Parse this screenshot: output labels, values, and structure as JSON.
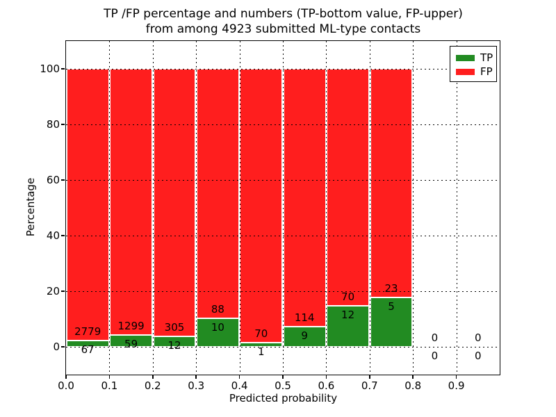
{
  "title": {
    "line1": "TP /FP percentage and numbers (TP-bottom value, FP-upper)",
    "line2": "from among 4923 submitted ML-type contacts"
  },
  "chart_data": {
    "type": "bar",
    "stacked": true,
    "title": "TP /FP percentage and numbers (TP-bottom value, FP-upper)\nfrom among 4923 submitted ML-type contacts",
    "xlabel": "Predicted probability",
    "ylabel": "Percentage",
    "total_contacts": 4923,
    "bin_starts": [
      0.0,
      0.1,
      0.2,
      0.3,
      0.4,
      0.5,
      0.6,
      0.7,
      0.8,
      0.9
    ],
    "bin_width": 0.1,
    "xticks": [
      0.0,
      0.1,
      0.2,
      0.3,
      0.4,
      0.5,
      0.6,
      0.7,
      0.8,
      0.9
    ],
    "xticklabels": [
      "0.0",
      "0.1",
      "0.2",
      "0.3",
      "0.4",
      "0.5",
      "0.6",
      "0.7",
      "0.8",
      "0.9"
    ],
    "yticks": [
      0,
      20,
      40,
      60,
      80,
      100
    ],
    "yticklabels": [
      "0",
      "20",
      "40",
      "60",
      "80",
      "100"
    ],
    "xlim": [
      0.0,
      1.0
    ],
    "ylim": [
      -10,
      110
    ],
    "grid": "dotted",
    "series": [
      {
        "name": "TP",
        "color": "#228b22",
        "counts": [
          67,
          59,
          12,
          10,
          1,
          9,
          12,
          5,
          0,
          0
        ]
      },
      {
        "name": "FP",
        "color": "#ff1e1e",
        "counts": [
          2779,
          1299,
          305,
          88,
          70,
          114,
          70,
          23,
          0,
          0
        ]
      }
    ],
    "tp_percent": [
      2.35,
      4.34,
      3.79,
      10.2,
      1.41,
      7.32,
      14.63,
      17.86,
      0,
      0
    ],
    "legend": {
      "position": "upper right",
      "entries": [
        {
          "label": "TP",
          "color": "#228b22"
        },
        {
          "label": "FP",
          "color": "#ff1e1e"
        }
      ]
    }
  }
}
